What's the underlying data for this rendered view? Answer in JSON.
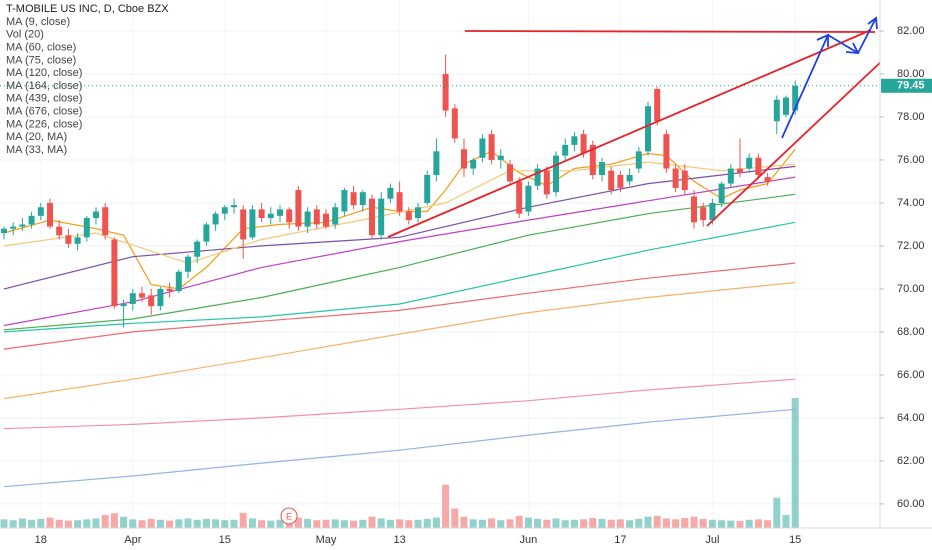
{
  "chart_data": {
    "type": "candlestick",
    "title": "T-MOBILE US INC, D, Cboe BZX",
    "categories": [
      null,
      null,
      null,
      null,
      "18",
      null,
      null,
      null,
      null,
      null,
      null,
      null,
      null,
      null,
      "Apr",
      null,
      null,
      null,
      null,
      null,
      null,
      null,
      null,
      null,
      "15",
      null,
      null,
      null,
      null,
      null,
      null,
      null,
      null,
      null,
      null,
      "May",
      null,
      null,
      null,
      null,
      null,
      null,
      null,
      "13",
      null,
      null,
      null,
      null,
      null,
      null,
      null,
      null,
      null,
      null,
      null,
      null,
      null,
      "Jun",
      null,
      null,
      null,
      null,
      null,
      null,
      null,
      null,
      null,
      "17",
      null,
      null,
      null,
      null,
      null,
      null,
      null,
      null,
      null,
      "Jul",
      null,
      null,
      null,
      null,
      null,
      null,
      null,
      null,
      "15"
    ],
    "open": [
      72.6,
      72.8,
      72.9,
      73.0,
      73.4,
      74.0,
      72.9,
      72.5,
      72.1,
      72.4,
      73.3,
      73.8,
      72.3,
      69.2,
      69.3,
      69.8,
      69.7,
      69.2,
      70.0,
      69.9,
      70.8,
      71.5,
      72.2,
      73.0,
      73.5,
      73.8,
      73.7,
      72.4,
      73.7,
      73.3,
      73.4,
      73.7,
      74.6,
      72.9,
      73.7,
      73.5,
      73.0,
      73.6,
      74.5,
      73.9,
      74.2,
      72.5,
      74.2,
      74.5,
      73.6,
      73.3,
      74.0,
      75.3,
      80.0,
      78.4,
      76.5,
      75.6,
      76.1,
      77.2,
      76.0,
      75.8,
      75.0,
      73.6,
      74.8,
      75.5,
      74.5,
      76.2,
      76.7,
      77.2,
      76.7,
      75.3,
      75.5,
      75.3,
      75.0,
      75.6,
      76.4,
      79.3,
      77.2,
      75.6,
      75.5,
      74.3,
      73.8,
      73.2,
      74.0,
      74.9,
      75.6,
      75.6,
      76.1,
      75.2,
      77.8,
      78.1,
      78.3
    ],
    "high": [
      72.9,
      73.1,
      73.3,
      73.6,
      74.0,
      74.2,
      73.2,
      72.8,
      72.6,
      73.4,
      73.8,
      74.0,
      72.4,
      69.5,
      70.0,
      70.1,
      70.0,
      70.1,
      70.3,
      70.9,
      71.6,
      72.3,
      73.1,
      73.6,
      73.9,
      74.2,
      73.9,
      73.9,
      74.0,
      73.8,
      73.9,
      73.8,
      74.8,
      73.8,
      73.9,
      73.7,
      74.0,
      74.7,
      74.8,
      74.6,
      74.4,
      74.5,
      74.9,
      75.0,
      73.8,
      74.0,
      75.5,
      77.0,
      80.9,
      78.6,
      77.0,
      76.1,
      77.2,
      77.4,
      76.5,
      76.0,
      75.2,
      75.0,
      75.8,
      75.7,
      76.4,
      77.0,
      77.3,
      77.4,
      76.9,
      76.1,
      75.7,
      75.5,
      75.6,
      76.6,
      78.7,
      79.4,
      77.4,
      75.8,
      75.8,
      74.6,
      74.0,
      74.2,
      75.0,
      75.8,
      77.0,
      76.3,
      76.3,
      75.4,
      79.0,
      79.0,
      79.7
    ],
    "low": [
      72.3,
      72.5,
      72.7,
      72.8,
      73.2,
      72.8,
      72.3,
      71.9,
      71.8,
      72.2,
      73.0,
      72.3,
      69.1,
      68.2,
      69.0,
      69.4,
      68.8,
      69.0,
      69.6,
      69.8,
      70.5,
      71.2,
      72.0,
      72.7,
      73.2,
      73.5,
      71.4,
      72.3,
      73.1,
      73.0,
      73.1,
      72.8,
      72.7,
      72.6,
      72.8,
      72.8,
      72.8,
      73.4,
      73.7,
      73.6,
      72.3,
      72.3,
      74.0,
      73.4,
      73.0,
      73.1,
      73.9,
      75.0,
      78.0,
      76.8,
      75.2,
      75.3,
      75.9,
      75.8,
      75.6,
      74.8,
      73.3,
      73.4,
      74.6,
      74.2,
      74.3,
      76.0,
      76.4,
      76.1,
      75.1,
      75.0,
      74.4,
      74.5,
      74.8,
      75.4,
      76.2,
      77.6,
      75.4,
      74.5,
      74.4,
      72.8,
      72.9,
      73.0,
      73.8,
      74.7,
      75.2,
      75.4,
      75.1,
      74.8,
      77.2,
      78.0,
      78.1
    ],
    "close": [
      72.8,
      72.9,
      73.0,
      73.4,
      73.8,
      72.9,
      72.5,
      72.1,
      72.4,
      73.3,
      73.6,
      72.5,
      69.2,
      69.3,
      69.8,
      69.6,
      69.2,
      70.0,
      69.9,
      70.8,
      71.5,
      72.2,
      73.0,
      73.5,
      73.8,
      73.9,
      72.3,
      73.7,
      73.3,
      73.5,
      73.7,
      73.1,
      72.9,
      73.6,
      73.0,
      72.9,
      73.8,
      74.6,
      73.9,
      74.5,
      72.5,
      74.2,
      74.7,
      73.6,
      73.2,
      73.8,
      75.3,
      76.4,
      78.3,
      77.0,
      75.6,
      76.0,
      77.0,
      76.0,
      76.2,
      75.0,
      73.5,
      74.8,
      75.6,
      74.4,
      76.2,
      76.7,
      77.1,
      76.3,
      75.3,
      75.9,
      74.6,
      74.7,
      75.3,
      76.4,
      78.5,
      77.8,
      75.6,
      74.7,
      74.6,
      73.1,
      73.2,
      74.0,
      74.9,
      75.6,
      75.4,
      76.1,
      75.3,
      75.0,
      78.8,
      78.9,
      79.45
    ],
    "up_color": "#26a69a",
    "down_color": "#ef5350",
    "series": [
      {
        "name": "MA (9, close)",
        "color": "#f39c12",
        "x": [
          0,
          5,
          10,
          13,
          16,
          19,
          22,
          26,
          30,
          35,
          40,
          43,
          46,
          48,
          50,
          53,
          56,
          59,
          62,
          66,
          70,
          72,
          75,
          78,
          80,
          83,
          86
        ],
        "values": [
          72.6,
          73.2,
          72.8,
          72.5,
          70.2,
          70.0,
          71.0,
          72.8,
          73.0,
          73.1,
          73.8,
          73.6,
          73.6,
          74.6,
          75.8,
          76.4,
          75.4,
          74.8,
          75.6,
          75.8,
          76.3,
          76.2,
          75.0,
          74.2,
          74.6,
          74.9,
          76.5
        ]
      },
      {
        "name": "Vol (20)",
        "values": [
          2.0,
          1.8,
          2.2,
          1.9,
          2.1,
          2.4,
          1.9,
          1.7,
          1.8,
          2.0,
          2.2,
          3.0,
          3.4,
          2.6,
          2.0,
          1.8,
          2.1,
          1.9,
          1.7,
          2.0,
          2.2,
          1.9,
          2.1,
          2.0,
          1.8,
          1.9,
          3.5,
          2.2,
          1.8,
          1.7,
          1.9,
          2.0,
          2.4,
          2.1,
          1.8,
          1.9,
          2.0,
          1.8,
          1.7,
          1.9,
          2.6,
          2.2,
          1.9,
          2.0,
          1.8,
          1.9,
          2.1,
          2.4,
          10.0,
          4.5,
          2.6,
          2.0,
          1.9,
          2.2,
          1.8,
          2.0,
          2.8,
          2.4,
          2.1,
          1.9,
          2.2,
          1.8,
          1.9,
          2.0,
          2.3,
          2.1,
          1.9,
          2.0,
          1.8,
          2.1,
          2.6,
          2.8,
          2.2,
          2.0,
          2.3,
          2.6,
          2.1,
          1.9,
          1.8,
          1.7,
          1.6,
          1.9,
          2.0,
          1.8,
          7.0,
          3.0,
          30.0
        ]
      },
      {
        "name": "MA (60, close)",
        "color": "#7b4fa8",
        "x": [
          0,
          14,
          28,
          43,
          57,
          70,
          86
        ],
        "values": [
          70.0,
          71.5,
          72.0,
          72.4,
          73.8,
          74.9,
          75.7
        ]
      },
      {
        "name": "MA (75, close)",
        "color": "#c040c0",
        "x": [
          0,
          14,
          28,
          43,
          57,
          70,
          86
        ],
        "values": [
          68.3,
          69.4,
          71.0,
          72.2,
          73.2,
          74.1,
          75.2
        ]
      },
      {
        "name": "MA (120, close)",
        "color": "#4caf50",
        "x": [
          0,
          14,
          28,
          43,
          57,
          70,
          86
        ],
        "values": [
          68.1,
          68.6,
          69.6,
          71.0,
          72.5,
          73.5,
          74.4
        ]
      },
      {
        "name": "MA (164, close)",
        "color": "#26c6a6",
        "x": [
          0,
          14,
          28,
          43,
          57,
          70,
          86
        ],
        "values": [
          68.0,
          68.4,
          68.7,
          69.3,
          70.6,
          71.8,
          73.1
        ]
      },
      {
        "name": "MA (439, close)",
        "color": "#f48fb1",
        "x": [
          0,
          14,
          28,
          43,
          57,
          70,
          86
        ],
        "values": [
          63.5,
          63.7,
          64.0,
          64.4,
          64.8,
          65.3,
          65.8
        ]
      },
      {
        "name": "MA (676, close)",
        "color": "#90b4e8",
        "x": [
          0,
          14,
          28,
          43,
          57,
          70,
          86
        ],
        "values": [
          60.8,
          61.3,
          61.9,
          62.5,
          63.2,
          63.8,
          64.4
        ]
      },
      {
        "name": "MA (226, close)",
        "color": "#ef6b6b",
        "x": [
          0,
          14,
          28,
          43,
          57,
          70,
          86
        ],
        "values": [
          67.2,
          68.0,
          68.5,
          69.0,
          69.8,
          70.5,
          71.2
        ]
      },
      {
        "name": "MA (20, MA)",
        "color": "#f7c873",
        "x": [
          0,
          10,
          20,
          28,
          40,
          48,
          55,
          62,
          70,
          78,
          86
        ],
        "values": [
          72.0,
          72.6,
          71.2,
          72.3,
          73.3,
          74.0,
          75.5,
          75.5,
          75.9,
          75.5,
          75.8
        ]
      },
      {
        "name": "MA (33, MA)",
        "color": "#f6b26b",
        "x": [
          0,
          14,
          28,
          43,
          57,
          70,
          86
        ],
        "values": [
          64.9,
          65.8,
          66.8,
          67.9,
          68.9,
          69.6,
          70.3
        ]
      }
    ],
    "ylim": [
      58.88,
      83.44
    ],
    "yticks": [
      {
        "value": 60,
        "label": "60.00"
      },
      {
        "value": 62,
        "label": "62.00"
      },
      {
        "value": 64,
        "label": "64.00"
      },
      {
        "value": 66,
        "label": "66.00"
      },
      {
        "value": 68,
        "label": "68.00"
      },
      {
        "value": 70,
        "label": "70.00"
      },
      {
        "value": 72,
        "label": "72.00"
      },
      {
        "value": 74,
        "label": "74.00"
      },
      {
        "value": 76,
        "label": "76.00"
      },
      {
        "value": 78,
        "label": "78.00"
      },
      {
        "value": 80,
        "label": "80.00"
      },
      {
        "value": 82,
        "label": "82.00"
      }
    ],
    "grid": true,
    "last_price": 79.45,
    "earnings_label": "E"
  }
}
